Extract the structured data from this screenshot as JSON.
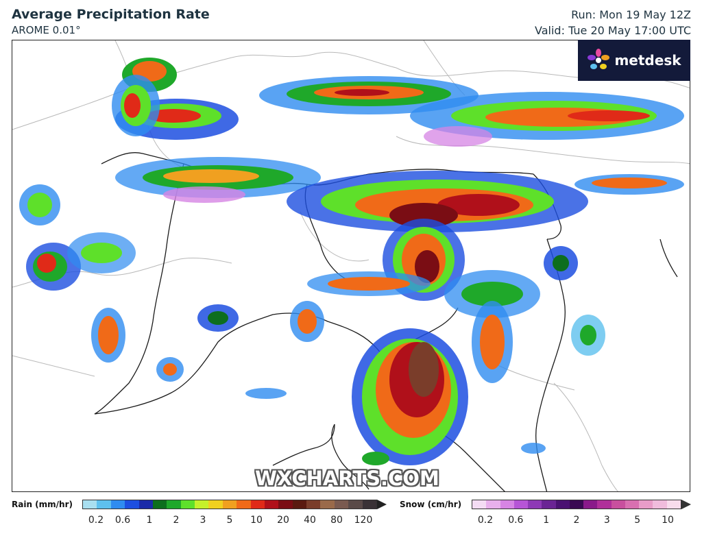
{
  "header": {
    "title": "Average Precipitation Rate",
    "model": "AROME 0.01°",
    "run": "Run: Mon 19 May 12Z",
    "valid": "Valid: Tue 20 May 17:00 UTC"
  },
  "logo": {
    "text": "metdesk",
    "icon": "metdesk-flower-icon"
  },
  "watermark": "WXCHARTS.COM",
  "legend": {
    "rain": {
      "label": "Rain (mm/hr)",
      "ticks": [
        "0.2",
        "0.6",
        "1",
        "2",
        "3",
        "5",
        "10",
        "20",
        "40",
        "80",
        "120"
      ],
      "colors": [
        "#a9dff0",
        "#5ec0ee",
        "#2f8cf0",
        "#1d4fe0",
        "#1a2aa8",
        "#0d6e1e",
        "#1fa82a",
        "#5ee02a",
        "#c6f02a",
        "#f0d020",
        "#f0a020",
        "#f06a18",
        "#e02a18",
        "#b0101a",
        "#7a0d14",
        "#5a1a10",
        "#7a3d2a",
        "#9a6a4a",
        "#7a5a50",
        "#5a4a48",
        "#3a3236"
      ]
    },
    "snow": {
      "label": "Snow (cm/hr)",
      "ticks": [
        "0.2",
        "0.6",
        "1",
        "2",
        "3",
        "5",
        "10"
      ],
      "colors": [
        "#f4dcf4",
        "#e8b0ec",
        "#d684e4",
        "#b655d6",
        "#8e3ab6",
        "#6a2494",
        "#4a1272",
        "#3a0a52",
        "#8a1a8a",
        "#b0309a",
        "#c8509e",
        "#d870b0",
        "#e89cc8",
        "#f0bcdc",
        "#f8dcec"
      ]
    }
  }
}
